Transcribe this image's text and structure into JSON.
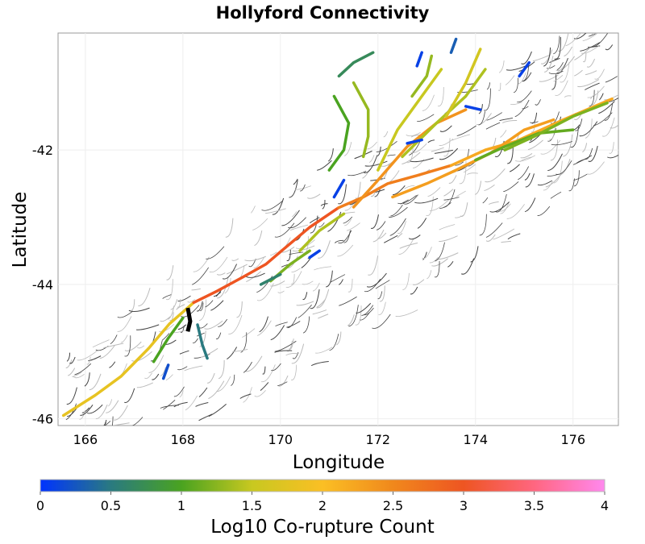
{
  "chart_data": {
    "type": "map",
    "title": "Hollyford Connectivity",
    "xlabel": "Longitude",
    "ylabel": "Latitude",
    "xlim": [
      165.44,
      176.93
    ],
    "ylim": [
      -46.1,
      -40.26
    ],
    "xticks": [
      166,
      168,
      170,
      172,
      174,
      176
    ],
    "yticks": [
      -42,
      -44,
      -46
    ],
    "grid": true,
    "colorbar": {
      "label": "Log10 Co-rupture Count",
      "range": [
        0,
        4
      ],
      "ticks": [
        0,
        0.5,
        1,
        1.5,
        2,
        2.5,
        3,
        3.5,
        4
      ],
      "tick_labels": [
        "0",
        "0.5",
        "1",
        "1.5",
        "2",
        "2.5",
        "3",
        "3.5",
        "4"
      ],
      "colors": [
        "#0033ff",
        "#2a7a80",
        "#4aa320",
        "#c8c820",
        "#fbbf24",
        "#f0881c",
        "#ee5522",
        "#ff6680",
        "#ff88ee"
      ],
      "placement": "bottom"
    },
    "source_fault": {
      "name": "Hollyford",
      "color": "#000000",
      "trace": [
        [
          168.1,
          -44.35
        ],
        [
          168.15,
          -44.55
        ],
        [
          168.1,
          -44.7
        ]
      ]
    },
    "traces": [
      {
        "value": 1.8,
        "points": [
          [
            165.55,
            -45.95
          ],
          [
            166.2,
            -45.65
          ],
          [
            166.73,
            -45.37
          ],
          [
            167.3,
            -44.95
          ],
          [
            167.72,
            -44.59
          ],
          [
            168.22,
            -44.27
          ]
        ]
      },
      {
        "value": 3.0,
        "points": [
          [
            168.22,
            -44.27
          ],
          [
            168.7,
            -44.1
          ],
          [
            169.21,
            -43.9
          ],
          [
            169.7,
            -43.7
          ],
          [
            170.04,
            -43.49
          ],
          [
            170.6,
            -43.15
          ],
          [
            171.19,
            -42.86
          ]
        ]
      },
      {
        "value": 2.6,
        "points": [
          [
            171.19,
            -42.86
          ],
          [
            171.7,
            -42.7
          ],
          [
            172.2,
            -42.5
          ],
          [
            172.8,
            -42.38
          ],
          [
            173.5,
            -42.23
          ]
        ]
      },
      {
        "value": 2.2,
        "points": [
          [
            173.5,
            -42.23
          ],
          [
            174.2,
            -42.0
          ],
          [
            174.83,
            -41.87
          ],
          [
            175.8,
            -41.55
          ],
          [
            176.8,
            -41.24
          ]
        ]
      },
      {
        "value": 2.4,
        "points": [
          [
            171.5,
            -42.85
          ],
          [
            172.0,
            -42.45
          ],
          [
            172.6,
            -41.95
          ],
          [
            173.2,
            -41.6
          ],
          [
            173.8,
            -41.4
          ]
        ]
      },
      {
        "value": 2.3,
        "points": [
          [
            172.3,
            -42.7
          ],
          [
            173.0,
            -42.5
          ],
          [
            173.6,
            -42.3
          ],
          [
            174.3,
            -42.05
          ],
          [
            175.0,
            -41.7
          ],
          [
            175.6,
            -41.55
          ]
        ]
      },
      {
        "value": 1.5,
        "points": [
          [
            172.0,
            -42.3
          ],
          [
            172.4,
            -41.7
          ],
          [
            172.9,
            -41.2
          ],
          [
            173.3,
            -40.8
          ]
        ]
      },
      {
        "value": 1.4,
        "points": [
          [
            172.5,
            -42.1
          ],
          [
            173.2,
            -41.6
          ],
          [
            173.8,
            -41.2
          ],
          [
            174.2,
            -40.8
          ]
        ]
      },
      {
        "value": 1.6,
        "points": [
          [
            173.4,
            -41.5
          ],
          [
            173.8,
            -41.0
          ],
          [
            174.1,
            -40.5
          ]
        ]
      },
      {
        "value": 1.3,
        "points": [
          [
            172.7,
            -41.2
          ],
          [
            173.0,
            -40.9
          ],
          [
            173.1,
            -40.6
          ]
        ]
      },
      {
        "value": 1.1,
        "points": [
          [
            174.0,
            -42.15
          ],
          [
            174.6,
            -41.95
          ],
          [
            175.3,
            -41.75
          ],
          [
            176.0,
            -41.7
          ]
        ]
      },
      {
        "value": 1.2,
        "points": [
          [
            174.6,
            -42.0
          ],
          [
            175.2,
            -41.8
          ],
          [
            176.0,
            -41.5
          ],
          [
            176.7,
            -41.3
          ]
        ]
      },
      {
        "value": 1.3,
        "points": [
          [
            171.5,
            -41.0
          ],
          [
            171.8,
            -41.4
          ],
          [
            171.8,
            -41.8
          ],
          [
            171.7,
            -42.1
          ]
        ]
      },
      {
        "value": 1.0,
        "points": [
          [
            171.1,
            -41.2
          ],
          [
            171.4,
            -41.6
          ],
          [
            171.3,
            -42.0
          ],
          [
            171.0,
            -42.3
          ]
        ]
      },
      {
        "value": 0.7,
        "points": [
          [
            171.2,
            -40.9
          ],
          [
            171.5,
            -40.7
          ],
          [
            171.9,
            -40.55
          ]
        ]
      },
      {
        "value": 1.4,
        "points": [
          [
            170.4,
            -43.5
          ],
          [
            170.8,
            -43.2
          ],
          [
            171.3,
            -42.95
          ]
        ]
      },
      {
        "value": 1.2,
        "points": [
          [
            169.8,
            -43.95
          ],
          [
            170.2,
            -43.7
          ],
          [
            170.6,
            -43.5
          ]
        ]
      },
      {
        "value": 0.6,
        "points": [
          [
            169.6,
            -44.0
          ],
          [
            170.0,
            -43.85
          ]
        ]
      },
      {
        "value": 1.0,
        "points": [
          [
            167.4,
            -45.15
          ],
          [
            167.7,
            -44.8
          ],
          [
            168.0,
            -44.5
          ]
        ]
      },
      {
        "value": 0.5,
        "points": [
          [
            168.3,
            -44.6
          ],
          [
            168.4,
            -44.9
          ],
          [
            168.5,
            -45.1
          ]
        ]
      },
      {
        "value": 0.2,
        "points": [
          [
            167.6,
            -45.4
          ],
          [
            167.7,
            -45.2
          ]
        ]
      },
      {
        "value": 0.1,
        "points": [
          [
            172.8,
            -40.75
          ],
          [
            172.9,
            -40.55
          ]
        ]
      },
      {
        "value": 0.1,
        "points": [
          [
            174.9,
            -40.9
          ],
          [
            175.1,
            -40.7
          ]
        ]
      },
      {
        "value": 0.1,
        "points": [
          [
            172.6,
            -41.9
          ],
          [
            172.9,
            -41.85
          ]
        ]
      },
      {
        "value": 0.1,
        "points": [
          [
            171.3,
            -42.45
          ],
          [
            171.1,
            -42.7
          ]
        ]
      },
      {
        "value": 0.1,
        "points": [
          [
            170.6,
            -43.6
          ],
          [
            170.8,
            -43.5
          ]
        ]
      },
      {
        "value": 0.1,
        "points": [
          [
            173.8,
            -41.35
          ],
          [
            174.1,
            -41.4
          ]
        ]
      },
      {
        "value": 0.3,
        "points": [
          [
            173.5,
            -40.55
          ],
          [
            173.6,
            -40.35
          ]
        ]
      }
    ]
  }
}
